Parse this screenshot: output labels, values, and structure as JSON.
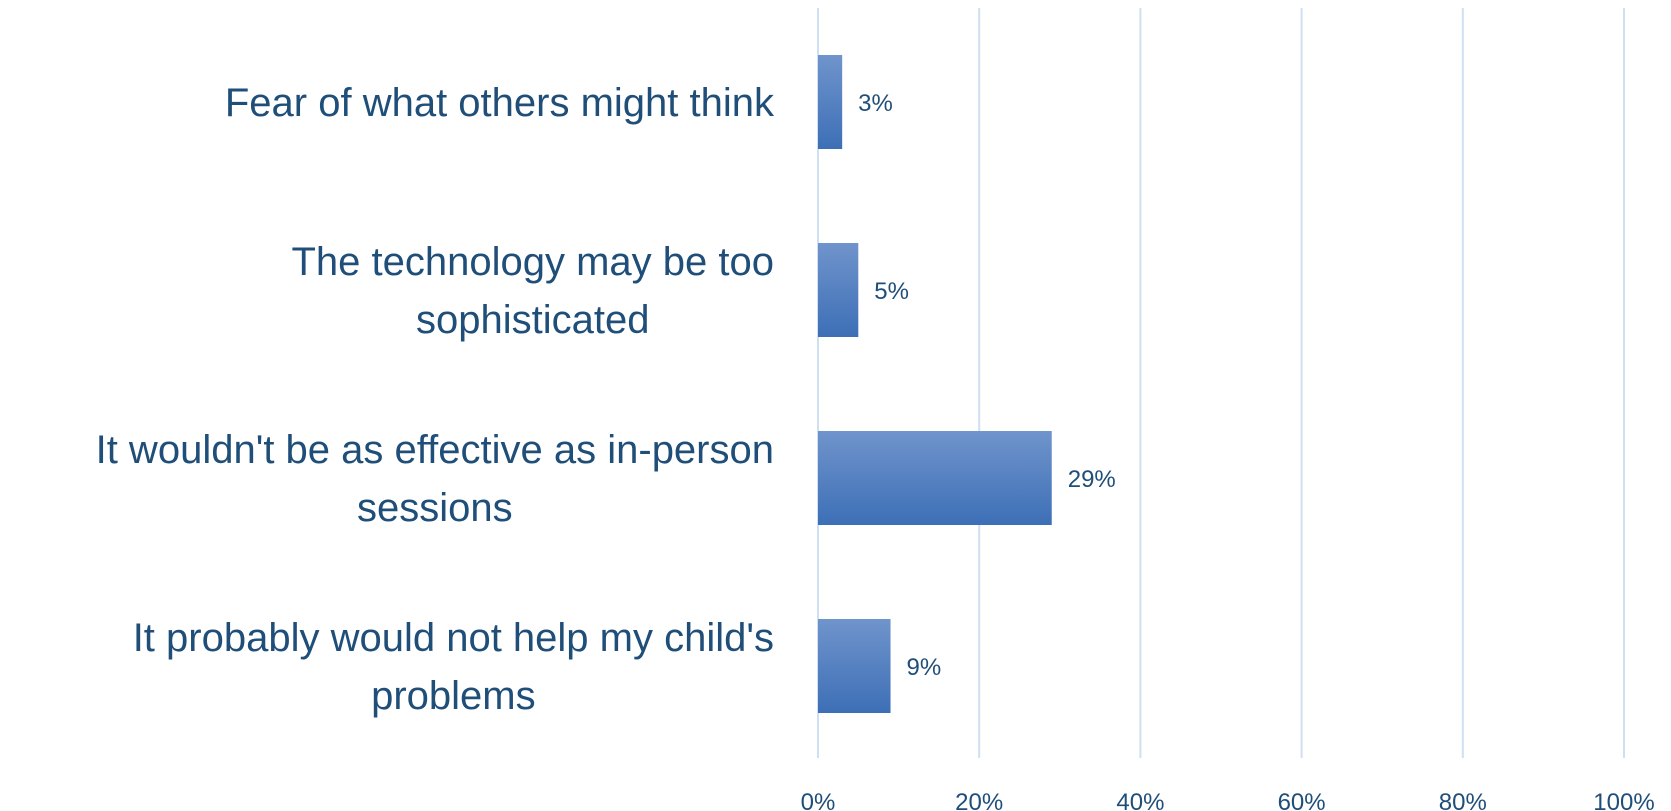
{
  "chart_data": {
    "type": "bar",
    "orientation": "horizontal",
    "categories": [
      [
        "Fear of what others might think"
      ],
      [
        "The technology may be too",
        "sophisticated"
      ],
      [
        "It wouldn't be as effective as in-person",
        "sessions"
      ],
      [
        "It probably would not help my child's",
        "problems"
      ]
    ],
    "values": [
      3,
      5,
      29,
      9
    ],
    "value_labels": [
      "3%",
      "5%",
      "29%",
      "9%"
    ],
    "xlim": [
      0,
      100
    ],
    "xticks": [
      0,
      20,
      40,
      60,
      80,
      100
    ],
    "xtick_labels": [
      "0%",
      "20%",
      "40%",
      "60%",
      "80%",
      "100%"
    ],
    "title": "",
    "xlabel": "",
    "ylabel": "",
    "grid": "vertical",
    "legend": "none",
    "bar_color_top": "#7094cc",
    "bar_color_bottom": "#3d6fb6",
    "text_color": "#1f4e79",
    "grid_color": "#cfe0f2"
  }
}
